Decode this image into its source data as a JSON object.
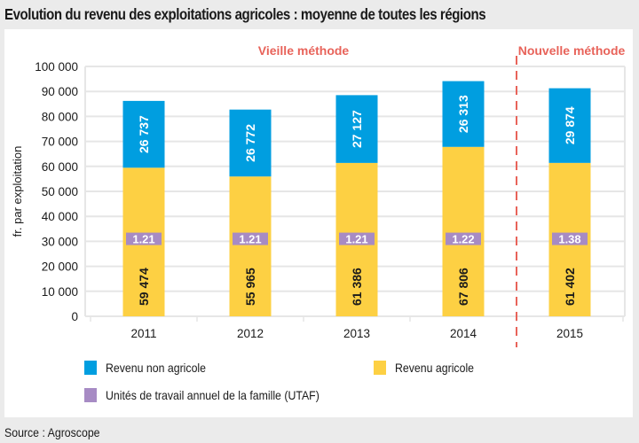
{
  "title": "Evolution du revenu des exploitations agricoles : moyenne de toutes les régions",
  "source": "Source : Agroscope",
  "colors": {
    "non_agri": "#009ee0",
    "agri": "#fdd043",
    "utaf": "#a78bc4",
    "method_line": "#e8635a",
    "grid": "#e6e6e6"
  },
  "chart_data": {
    "type": "bar",
    "stacked": true,
    "title": "Evolution du revenu des exploitations agricoles : moyenne de toutes les régions",
    "xlabel": "",
    "ylabel": "fr. par exploitation",
    "ylim": [
      0,
      100000
    ],
    "yticks": [
      0,
      10000,
      20000,
      30000,
      40000,
      50000,
      60000,
      70000,
      80000,
      90000,
      100000
    ],
    "ytick_labels": [
      "0",
      "10 000",
      "20 000",
      "30 000",
      "40 000",
      "50 000",
      "60 000",
      "70 000",
      "80 000",
      "90 000",
      "100 000"
    ],
    "categories": [
      "2011",
      "2012",
      "2013",
      "2014",
      "2015"
    ],
    "grid": true,
    "series": [
      {
        "name": "Revenu agricole",
        "key": "agri",
        "values": [
          59474,
          55965,
          61386,
          67806,
          61402
        ],
        "labels": [
          "59 474",
          "55 965",
          "61 386",
          "67 806",
          "61 402"
        ]
      },
      {
        "name": "Revenu non agricole",
        "key": "non_agri",
        "values": [
          26737,
          26772,
          27127,
          26313,
          29874
        ],
        "labels": [
          "26 737",
          "26 772",
          "27 127",
          "26 313",
          "29 874"
        ]
      }
    ],
    "utaf": {
      "name": "Unités de travail annuel de la famille (UTAF)",
      "values": [
        1.21,
        1.21,
        1.21,
        1.22,
        1.38
      ],
      "labels": [
        "1.21",
        "1.21",
        "1.21",
        "1.22",
        "1.38"
      ],
      "marker_at": 31000
    },
    "annotations": [
      {
        "text": "Vieille méthode",
        "applies_to": [
          "2011",
          "2012",
          "2013",
          "2014"
        ]
      },
      {
        "text": "Nouvelle méthode",
        "applies_to": [
          "2015"
        ]
      }
    ],
    "divider_between": [
      "2014",
      "2015"
    ],
    "legend": {
      "position": "bottom",
      "items": [
        {
          "label": "Revenu non agricole",
          "key": "non_agri"
        },
        {
          "label": "Revenu agricole",
          "key": "agri"
        },
        {
          "label": "Unités de travail annuel de la famille (UTAF)",
          "key": "utaf"
        }
      ]
    }
  }
}
